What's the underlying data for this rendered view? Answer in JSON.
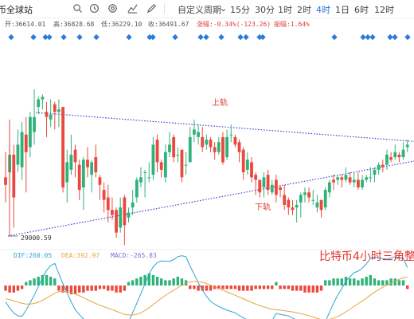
{
  "toolbar": {
    "site_label": "币全球站",
    "tools": [
      "search-icon",
      "clock-icon",
      "settings-icon",
      "indicator-icon",
      "draw-icon"
    ],
    "custom_period": "自定义周期",
    "periods": [
      "15分",
      "30分",
      "1时",
      "2时",
      "4时",
      "1日",
      "6时",
      "12时"
    ],
    "active_period": "4时"
  },
  "quote": {
    "open": "开:36614.01",
    "high": "高:36828.68",
    "low": "低:36229.10",
    "close": "收:36491.67",
    "change": "涨幅:-0.34%(-123.26)",
    "amplitude": "振幅:1.64%"
  },
  "annotations": {
    "upper_line": "上轨",
    "lower_line": "下轨",
    "low_marker": "29000.59",
    "caption": "比特币4小时三角整"
  },
  "macd": {
    "dif": "DIF:260.05",
    "dea": "DEA:392.97",
    "macd": "MACD:-265.83"
  },
  "colors": {
    "up": "#2fb37a",
    "down": "#e9493e",
    "accent": "#2d6cdf",
    "trendline": "#3d3dd6",
    "annotation": "#e0322b",
    "dif": "#e5a63a",
    "dea": "#2aa5d6",
    "signal_marker": "#2b7bdc"
  },
  "chart_data": {
    "type": "candlestick",
    "candles": [
      [
        0,
        31.0,
        30.7,
        32.0,
        30.0
      ],
      [
        1,
        31.2,
        31.9,
        32.3,
        30.4
      ],
      [
        2,
        31.9,
        30.2,
        32.3,
        29.0
      ],
      [
        3,
        31.5,
        32.3,
        32.9,
        31.2
      ],
      [
        4,
        31.4,
        32.8,
        33.2,
        30.9
      ],
      [
        5,
        32.7,
        32.0,
        33.4,
        30.4
      ],
      [
        6,
        32.2,
        33.4,
        33.6,
        31.8
      ],
      [
        7,
        32.8,
        33.4,
        34.5,
        32.3
      ],
      [
        8,
        33.8,
        34.1,
        34.2,
        33.5
      ],
      [
        9,
        34.1,
        34.2,
        34.3,
        33.7
      ],
      [
        10,
        33.6,
        33.4,
        34.0,
        32.6
      ],
      [
        11,
        33.3,
        33.5,
        34.1,
        33.0
      ],
      [
        12,
        33.9,
        33.6,
        34.0,
        32.9
      ],
      [
        13,
        33.6,
        33.7,
        34.1,
        33.0
      ],
      [
        14,
        33.8,
        30.6,
        33.8,
        30.4
      ],
      [
        15,
        30.8,
        31.6,
        32.1,
        30.0
      ],
      [
        16,
        31.3,
        31.9,
        32.7,
        31.1
      ],
      [
        17,
        32.1,
        31.6,
        32.3,
        31.0
      ],
      [
        18,
        31.5,
        30.5,
        31.7,
        30.1
      ],
      [
        19,
        30.6,
        31.7,
        31.8,
        29.7
      ],
      [
        20,
        31.7,
        31.4,
        32.2,
        31.0
      ],
      [
        21,
        31.1,
        31.6,
        31.7,
        30.4
      ],
      [
        22,
        31.8,
        31.2,
        32.3,
        31.0
      ],
      [
        23,
        31.0,
        30.7,
        31.1,
        30.1
      ],
      [
        24,
        30.5,
        30.1,
        30.8,
        29.6
      ],
      [
        25,
        30.2,
        29.7,
        30.7,
        29.2
      ],
      [
        26,
        29.7,
        29.5,
        30.2,
        29.3
      ],
      [
        27,
        29.7,
        28.8,
        29.8,
        28.6
      ],
      [
        28,
        29.0,
        29.8,
        30.2,
        28.8
      ],
      [
        29,
        30.2,
        29.1,
        30.3,
        28.3
      ],
      [
        30,
        29.4,
        29.6,
        29.8,
        29.2
      ],
      [
        31,
        29.8,
        30.0,
        30.5,
        29.5
      ],
      [
        32,
        30.2,
        30.9,
        31.0,
        30.0
      ],
      [
        33,
        30.8,
        31.0,
        31.4,
        30.6
      ],
      [
        34,
        31.2,
        31.2,
        31.3,
        30.2
      ],
      [
        35,
        31.0,
        31.0,
        31.6,
        30.8
      ],
      [
        36,
        31.1,
        32.3,
        32.6,
        30.9
      ],
      [
        37,
        32.5,
        31.6,
        32.7,
        31.2
      ],
      [
        38,
        31.6,
        31.3,
        31.7,
        31.0
      ],
      [
        39,
        31.0,
        32.0,
        32.3,
        30.8
      ],
      [
        40,
        32.0,
        32.3,
        32.8,
        31.8
      ],
      [
        41,
        32.6,
        31.8,
        32.7,
        31.6
      ],
      [
        42,
        31.9,
        31.9,
        32.2,
        31.6
      ],
      [
        43,
        32.1,
        31.0,
        32.1,
        30.8
      ],
      [
        44,
        31.5,
        31.5,
        32.0,
        31.1
      ],
      [
        45,
        31.6,
        32.6,
        33.0,
        31.6
      ],
      [
        46,
        32.7,
        32.9,
        33.3,
        32.4
      ],
      [
        47,
        32.6,
        32.8,
        33.1,
        32.3
      ],
      [
        48,
        32.6,
        32.2,
        33.0,
        32.0
      ],
      [
        49,
        32.3,
        32.5,
        32.7,
        32.1
      ],
      [
        50,
        32.5,
        32.2,
        32.6,
        32.0
      ],
      [
        51,
        32.2,
        32.0,
        32.4,
        31.7
      ],
      [
        52,
        32.0,
        32.4,
        32.6,
        31.9
      ],
      [
        53,
        32.6,
        31.6,
        32.8,
        31.5
      ],
      [
        54,
        31.8,
        32.6,
        32.9,
        31.7
      ],
      [
        55,
        32.7,
        32.7,
        33.1,
        32.4
      ],
      [
        56,
        32.6,
        32.3,
        32.7,
        32.2
      ],
      [
        57,
        32.4,
        32.0,
        32.5,
        31.6
      ],
      [
        58,
        32.1,
        31.2,
        32.2,
        30.9
      ],
      [
        59,
        31.3,
        31.7,
        32.0,
        31.1
      ],
      [
        60,
        31.6,
        31.0,
        31.8,
        30.8
      ],
      [
        61,
        31.1,
        30.9,
        31.2,
        30.3
      ],
      [
        62,
        30.9,
        30.4,
        30.9,
        30.2
      ],
      [
        63,
        30.6,
        31.0,
        31.2,
        30.2
      ],
      [
        64,
        31.1,
        30.5,
        31.3,
        30.3
      ],
      [
        65,
        30.4,
        30.7,
        30.9,
        30.3
      ],
      [
        66,
        30.9,
        30.3,
        31.1,
        30.0
      ],
      [
        67,
        30.6,
        30.5,
        30.7,
        30.2
      ],
      [
        68,
        30.3,
        29.9,
        30.7,
        29.7
      ],
      [
        69,
        30.1,
        29.8,
        30.2,
        29.5
      ],
      [
        70,
        29.8,
        29.7,
        30.1,
        29.5
      ],
      [
        71,
        29.8,
        29.9,
        30.1,
        29.2
      ],
      [
        72,
        30.0,
        30.3,
        30.4,
        29.4
      ],
      [
        73,
        30.3,
        30.4,
        30.6,
        30.0
      ],
      [
        74,
        30.4,
        30.2,
        30.6,
        30.0
      ],
      [
        75,
        30.1,
        30.1,
        30.5,
        29.9
      ],
      [
        76,
        29.8,
        30.0,
        30.3,
        29.6
      ],
      [
        77,
        30.1,
        29.7,
        30.1,
        29.4
      ],
      [
        78,
        29.8,
        30.5,
        30.6,
        29.7
      ],
      [
        79,
        30.4,
        30.8,
        30.9,
        30.2
      ],
      [
        80,
        30.9,
        30.8,
        31.1,
        30.5
      ],
      [
        81,
        30.9,
        31.0,
        31.1,
        30.7
      ],
      [
        82,
        31.0,
        30.9,
        31.1,
        30.6
      ],
      [
        83,
        30.9,
        31.1,
        31.4,
        30.8
      ],
      [
        84,
        31.0,
        30.8,
        31.2,
        30.7
      ],
      [
        85,
        30.8,
        30.9,
        31.2,
        30.6
      ],
      [
        86,
        30.9,
        30.6,
        31.2,
        30.5
      ],
      [
        87,
        30.6,
        30.9,
        31.1,
        30.5
      ],
      [
        88,
        30.9,
        31.0,
        31.1,
        30.8
      ],
      [
        89,
        31.0,
        31.0,
        31.4,
        30.8
      ],
      [
        90,
        31.1,
        31.3,
        31.4,
        30.8
      ],
      [
        91,
        31.3,
        31.5,
        31.6,
        31.1
      ],
      [
        92,
        31.5,
        31.4,
        31.7,
        31.2
      ],
      [
        93,
        31.5,
        31.9,
        32.1,
        31.3
      ],
      [
        94,
        31.8,
        31.7,
        32.0,
        31.6
      ],
      [
        95,
        31.8,
        32.0,
        32.3,
        31.7
      ],
      [
        96,
        31.9,
        31.8,
        32.0,
        31.6
      ],
      [
        97,
        31.8,
        32.1,
        32.4,
        31.7
      ],
      [
        98,
        32.2,
        32.3,
        32.5,
        32.0
      ]
    ],
    "low_point": 29000.59,
    "upper_trendline": [
      [
        0,
        33.8
      ],
      [
        98,
        32.3
      ]
    ],
    "lower_trendline": [
      [
        0,
        29.1
      ],
      [
        98,
        31.2
      ]
    ],
    "macd_histogram": [
      -3,
      -4,
      -4,
      -3,
      -2,
      2,
      3,
      4,
      5,
      6,
      6,
      5,
      4,
      -3,
      -4,
      -4,
      -5,
      -5,
      -4,
      -4,
      -3,
      -3,
      -3,
      -2,
      -2,
      -3,
      -3,
      -4,
      -4,
      -3,
      2,
      3,
      4,
      5,
      6,
      7,
      6,
      5,
      4,
      3,
      3,
      4,
      5,
      4,
      3,
      -2,
      -2,
      -3,
      -3,
      -3,
      -3,
      -2,
      -2,
      -2,
      -2,
      -2,
      -2,
      -3,
      -3,
      -3,
      -3,
      -2,
      -2,
      -2,
      -2,
      -2,
      2,
      -2,
      -2,
      -2,
      -3,
      -3,
      -3,
      -4,
      -4,
      -4,
      -4,
      -3,
      3,
      3,
      4,
      4,
      4,
      5,
      4,
      4,
      3,
      4,
      5,
      6,
      4,
      3,
      3,
      3,
      4,
      4,
      3,
      3,
      -2
    ]
  }
}
